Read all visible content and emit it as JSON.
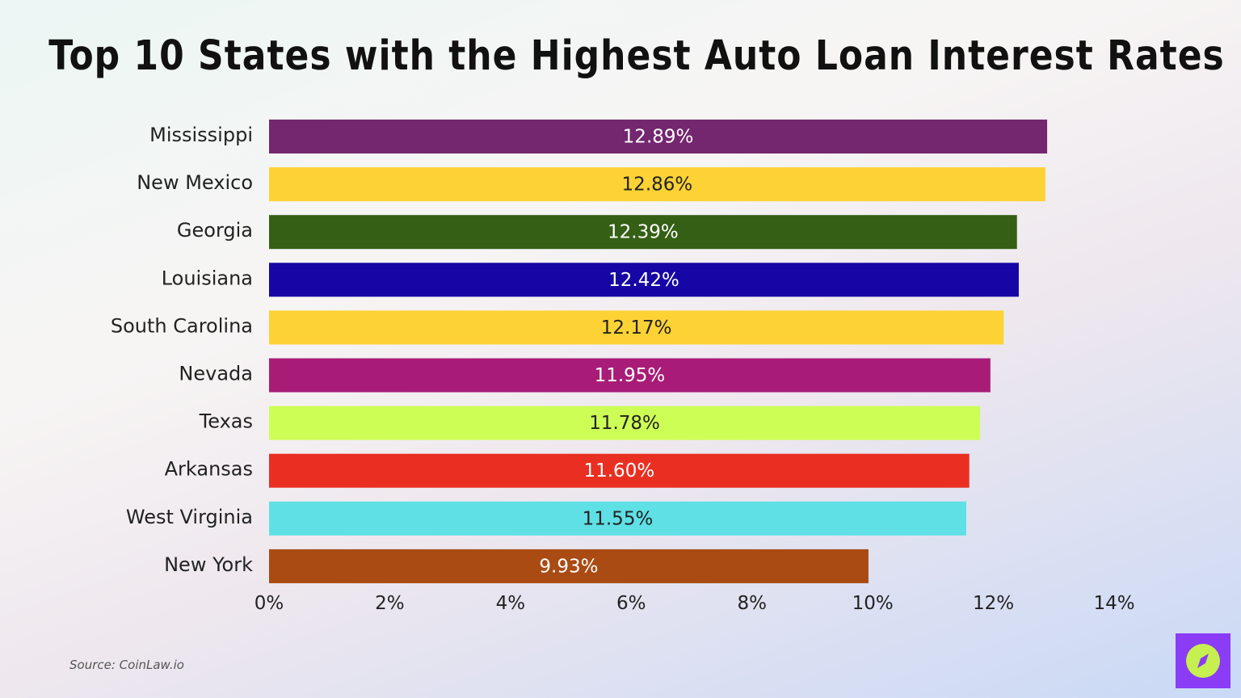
{
  "source": "Source: CoinLaw.io",
  "colors": {
    "logo_bg": "#8a3cf6",
    "logo_fg": "#c6f04f"
  },
  "chart_data": {
    "type": "bar",
    "orientation": "horizontal",
    "title": "Top 10 States with the Highest Auto Loan Interest Rates",
    "xlabel": "",
    "ylabel": "",
    "xlim": [
      0,
      14
    ],
    "x_ticks": [
      "0%",
      "2%",
      "4%",
      "6%",
      "8%",
      "10%",
      "12%",
      "14%"
    ],
    "grid": false,
    "categories": [
      "Mississippi",
      "New Mexico",
      "Georgia",
      "Louisiana",
      "South Carolina",
      "Nevada",
      "Texas",
      "Arkansas",
      "West Virginia",
      "New York"
    ],
    "values": [
      12.89,
      12.86,
      12.39,
      12.42,
      12.17,
      11.95,
      11.78,
      11.6,
      11.55,
      9.93
    ],
    "data_labels": [
      "12.89%",
      "12.86%",
      "12.39%",
      "12.42%",
      "12.17%",
      "11.95%",
      "11.78%",
      "11.60%",
      "11.55%",
      "9.93%"
    ],
    "bar_colors": [
      "#74266f",
      "#fdd234",
      "#345f14",
      "#1606a6",
      "#fdd234",
      "#a81c78",
      "#cdfe56",
      "#e92f22",
      "#5fe0e5",
      "#a94b12"
    ],
    "label_colors": [
      "#ffffff",
      "#222222",
      "#ffffff",
      "#ffffff",
      "#222222",
      "#ffffff",
      "#222222",
      "#ffffff",
      "#222222",
      "#ffffff"
    ]
  }
}
